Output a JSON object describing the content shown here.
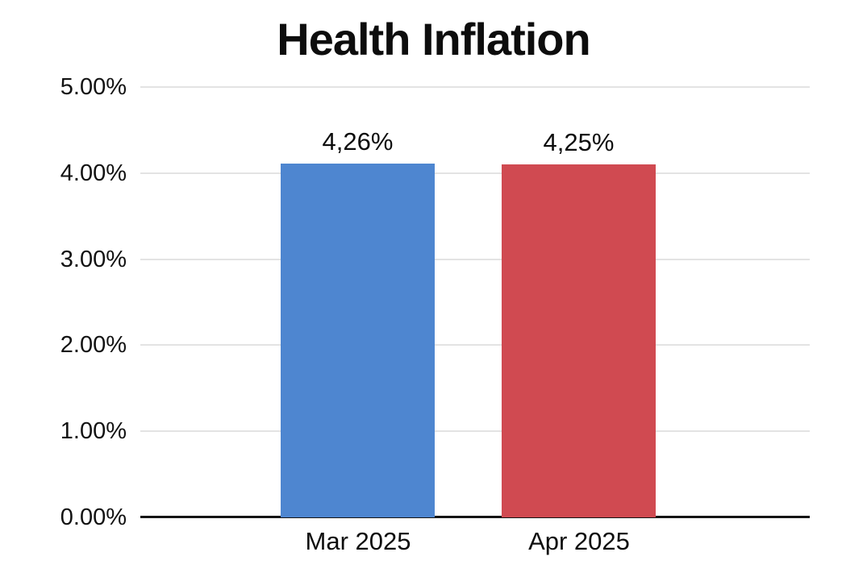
{
  "chart_data": {
    "type": "bar",
    "title": "Health Inflation",
    "categories": [
      "Mar 2025",
      "Apr 2025"
    ],
    "values": [
      4.26,
      4.25
    ],
    "value_labels": [
      "4,26%",
      "4,25%"
    ],
    "series_colors": [
      "#4e86d0",
      "#d04a51"
    ],
    "ylim": [
      0,
      5
    ],
    "ytick_labels_top_to_bottom": [
      "5.00%",
      "4.00%",
      "3.00%",
      "2.00%",
      "1.00%",
      "0.00%"
    ],
    "xlabel": "",
    "ylabel": "",
    "grid": true,
    "legend": false,
    "background_color": "#ffffff",
    "gridline_color": "#e3e3e3",
    "axis_line_color": "#141414",
    "text_color": "#111111",
    "bar_height_fraction_of_plot": [
      0.822,
      0.821
    ]
  }
}
